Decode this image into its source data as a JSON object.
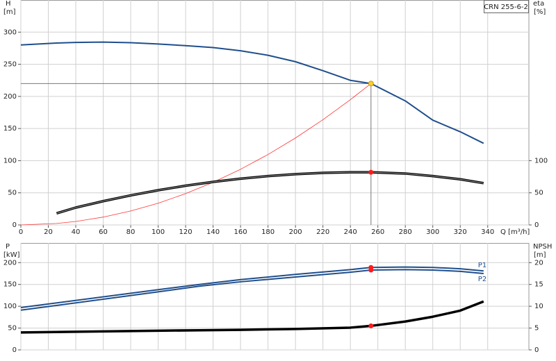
{
  "chart_data": [
    {
      "type": "line",
      "title": "CRN 255-6-2",
      "ylabel": "H",
      "yunit": "[m]",
      "y2label": "eta",
      "y2unit": "[%]",
      "xlabel": "Q [m³/h]",
      "x": [
        0,
        26,
        40,
        60,
        80,
        100,
        120,
        140,
        160,
        180,
        200,
        220,
        240,
        255,
        280,
        300,
        320,
        337
      ],
      "xlim": [
        0,
        370
      ],
      "xticks": [
        0,
        20,
        40,
        60,
        80,
        100,
        120,
        140,
        160,
        180,
        200,
        220,
        240,
        260,
        280,
        300,
        320,
        340
      ],
      "ylim": [
        0,
        350
      ],
      "yticks": [
        0,
        50,
        100,
        150,
        200,
        250,
        300
      ],
      "y2lim": [
        0,
        350
      ],
      "y2ticks": [
        0,
        50,
        100
      ],
      "grid": true,
      "duty_point": {
        "x": 255,
        "y": 220
      },
      "series": [
        {
          "color": "#1f4e8c",
          "values": [
            280,
            283,
            284,
            284.5,
            283.5,
            281.5,
            279,
            276,
            271,
            264,
            254,
            240,
            225,
            220,
            193,
            163,
            145,
            127
          ]
        },
        {
          "color": "#ff3333",
          "values": [
            0,
            2.3,
            5.4,
            12.2,
            21.7,
            33.8,
            48.7,
            66.3,
            86.6,
            109.6,
            135.3,
            163.7,
            194.9,
            220,
            null,
            null,
            null,
            null
          ]
        },
        {
          "color": "#000000",
          "axis": "y2",
          "values": [
            null,
            18,
            27,
            37,
            46,
            54,
            61,
            67,
            72,
            76,
            79,
            81,
            82,
            82,
            80,
            76,
            71,
            65
          ]
        }
      ]
    },
    {
      "type": "line",
      "ylabel": "P",
      "yunit": "[kW]",
      "y2label": "NPSH",
      "y2unit": "[m]",
      "x": [
        0,
        100,
        130,
        160,
        200,
        240,
        255,
        280,
        300,
        320,
        337
      ],
      "xlim": [
        0,
        370
      ],
      "ylim": [
        0,
        245
      ],
      "yticks": [
        0,
        50,
        100,
        150,
        200
      ],
      "y2lim": [
        0,
        24.5
      ],
      "y2ticks": [
        0,
        5,
        10,
        15,
        20
      ],
      "grid": true,
      "duty_x": 255,
      "series": [
        {
          "name": "P1",
          "color": "#1f4e8c",
          "values": [
            97,
            138,
            150,
            161,
            173,
            184,
            189,
            190,
            189,
            186,
            181
          ]
        },
        {
          "name": "P2",
          "color": "#1f4e8c",
          "values": [
            91,
            133,
            146,
            156,
            167,
            178,
            183,
            184,
            183,
            180,
            175
          ]
        },
        {
          "color": "#000000",
          "axis": "y2",
          "values": [
            4.0,
            4.4,
            4.5,
            4.6,
            4.8,
            5.1,
            5.5,
            6.5,
            7.6,
            9.0,
            11.1
          ]
        }
      ]
    }
  ]
}
